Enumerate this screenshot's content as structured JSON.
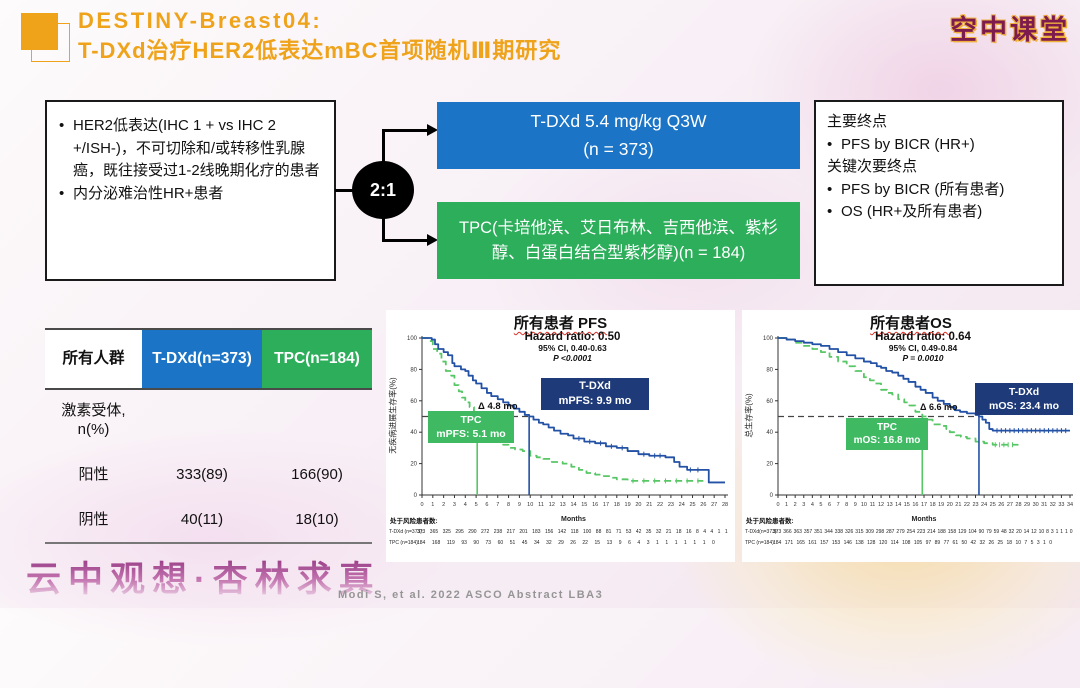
{
  "header": {
    "title_line1": "DESTINY-Breast04:",
    "title_line2": "T-DXd治疗HER2低表达mBC首项随机Ⅲ期研究",
    "logo": "空中课堂",
    "accent_color": "#EFA31B"
  },
  "flow": {
    "criteria_bullets": [
      "HER2低表达(IHC 1 + vs IHC 2 +/ISH-)，不可切除和/或转移性乳腺癌，既往接受过1-2线晚期化疗的患者",
      "内分泌难治性HR+患者"
    ],
    "randomization": "2:1",
    "arm1": {
      "line1": "T-DXd 5.4 mg/kg Q3W",
      "line2": "(n = 373)",
      "color": "#1B74C5"
    },
    "arm2": {
      "text": "TPC(卡培他滨、艾日布林、吉西他滨、紫杉醇、白蛋白结合型紫杉醇)(n = 184)",
      "color": "#2CAE5B"
    },
    "endpoints": {
      "primary_label": "主要终点",
      "primary_items": [
        "PFS by BICR (HR+)"
      ],
      "secondary_label": "关键次要终点",
      "secondary_items": [
        "PFS by BICR (所有患者)",
        "OS (HR+及所有患者)"
      ]
    }
  },
  "table": {
    "col_headers": [
      "所有人群",
      "T-DXd(n=373)",
      "TPC(n=184)"
    ],
    "header_colors": [
      "#FFFFFF",
      "#1B74C5",
      "#2CAE5B"
    ],
    "rows": [
      [
        "激素受体, n(%)",
        "",
        ""
      ],
      [
        "阳性",
        "333(89)",
        "166(90)"
      ],
      [
        "阴性",
        "40(11)",
        "18(10)"
      ]
    ]
  },
  "chart_data": [
    {
      "id": "pfs",
      "type": "line",
      "title": "所有患者 PFS",
      "hazard_ratio": "Hazard ratio: 0.50",
      "ci": "95% CI, 0.40-0.63",
      "p_value": "P <0.0001",
      "ylabel": "无疾病进展生存率(%)",
      "xlabel": "Months",
      "xlim": [
        0,
        28
      ],
      "ylim": [
        0,
        100
      ],
      "xticks": [
        0,
        1,
        2,
        3,
        4,
        5,
        6,
        7,
        8,
        9,
        10,
        11,
        12,
        13,
        14,
        15,
        16,
        17,
        18,
        19,
        20,
        21,
        22,
        23,
        24,
        25,
        26,
        27,
        28
      ],
      "yticks": [
        0,
        20,
        40,
        60,
        80,
        100
      ],
      "grid": false,
      "legend_position": "none",
      "reference_line_y": 50,
      "delta_label": "Δ 4.8 mo",
      "series": [
        {
          "name": "T-DXd",
          "label": "T-DXd",
          "sub": "mPFS: 9.9 mo",
          "median_x": 9.9,
          "color": "#2351A5",
          "dashed": false,
          "points": [
            [
              0,
              100
            ],
            [
              0.9,
              99
            ],
            [
              1.2,
              96
            ],
            [
              1.5,
              93
            ],
            [
              2,
              91
            ],
            [
              2.4,
              89
            ],
            [
              2.8,
              84
            ],
            [
              3,
              82
            ],
            [
              3.6,
              80
            ],
            [
              4,
              79
            ],
            [
              4.3,
              76
            ],
            [
              4.7,
              73
            ],
            [
              5,
              71
            ],
            [
              5.5,
              68
            ],
            [
              6,
              65
            ],
            [
              6.4,
              63
            ],
            [
              7,
              61
            ],
            [
              7.5,
              59
            ],
            [
              8,
              57
            ],
            [
              8.5,
              55
            ],
            [
              9,
              53
            ],
            [
              9.5,
              51
            ],
            [
              9.9,
              50
            ],
            [
              10.3,
              48
            ],
            [
              10.8,
              46
            ],
            [
              11.2,
              45
            ],
            [
              11.7,
              43
            ],
            [
              12.2,
              41
            ],
            [
              12.8,
              39
            ],
            [
              13.5,
              38
            ],
            [
              14,
              36
            ],
            [
              15,
              34
            ],
            [
              16,
              33
            ],
            [
              17,
              31
            ],
            [
              18,
              30
            ],
            [
              19,
              28
            ],
            [
              20,
              26
            ],
            [
              21,
              25
            ],
            [
              22.5,
              24
            ],
            [
              23.3,
              21
            ],
            [
              23.8,
              18
            ],
            [
              24.5,
              16
            ],
            [
              26.3,
              16
            ],
            [
              26.5,
              8
            ],
            [
              28,
              8
            ]
          ],
          "censor_x": [
            14.5,
            15.5,
            16.5,
            17.5,
            18.5,
            20.5,
            21.5,
            22,
            24.8,
            25.5
          ]
        },
        {
          "name": "TPC",
          "label": "TPC",
          "sub": "mPFS: 5.1 mo",
          "median_x": 5.1,
          "color": "#57C765",
          "dashed": true,
          "points": [
            [
              0,
              100
            ],
            [
              0.6,
              98
            ],
            [
              1,
              93
            ],
            [
              1.4,
              90
            ],
            [
              1.8,
              85
            ],
            [
              2.2,
              79
            ],
            [
              2.7,
              76
            ],
            [
              3,
              70
            ],
            [
              3.4,
              66
            ],
            [
              3.7,
              62
            ],
            [
              4,
              59
            ],
            [
              4.4,
              56
            ],
            [
              4.8,
              53
            ],
            [
              5.1,
              50
            ],
            [
              5.4,
              46
            ],
            [
              5.8,
              44
            ],
            [
              6.2,
              41
            ],
            [
              6.6,
              38
            ],
            [
              7,
              35
            ],
            [
              7.5,
              32
            ],
            [
              8,
              30
            ],
            [
              8.6,
              29
            ],
            [
              9.3,
              28
            ],
            [
              10,
              25
            ],
            [
              10.6,
              24
            ],
            [
              11.2,
              23
            ],
            [
              12,
              21
            ],
            [
              13,
              20
            ],
            [
              13.8,
              18
            ],
            [
              14.5,
              16
            ],
            [
              15.2,
              14
            ],
            [
              16,
              13
            ],
            [
              16.8,
              12
            ],
            [
              17.5,
              11
            ],
            [
              18,
              10
            ],
            [
              19,
              9
            ],
            [
              26,
              9
            ]
          ],
          "censor_x": [
            19.5,
            20.5,
            21.5,
            22.5,
            23.5,
            24.5,
            25.5
          ]
        }
      ],
      "risk_header": "处于风险患者数:",
      "risk_rows": [
        {
          "label": "T-DXd (n=373):",
          "values": [
            373,
            365,
            325,
            295,
            290,
            272,
            238,
            217,
            201,
            183,
            156,
            142,
            118,
            100,
            88,
            81,
            71,
            53,
            42,
            35,
            32,
            21,
            18,
            16,
            8,
            4,
            4,
            1,
            1
          ]
        },
        {
          "label": "TPC (n=184):",
          "values": [
            184,
            168,
            119,
            93,
            90,
            73,
            60,
            51,
            45,
            34,
            32,
            29,
            26,
            22,
            15,
            13,
            9,
            6,
            4,
            3,
            1,
            1,
            1,
            1,
            1,
            1,
            0
          ]
        }
      ]
    },
    {
      "id": "os",
      "type": "line",
      "title": "所有患者OS",
      "hazard_ratio": "Hazard ratio: 0.64",
      "ci": "95% CI, 0.49-0.84",
      "p_value": "P = 0.0010",
      "ylabel": "总生存率(%)",
      "xlabel": "Months",
      "xlim": [
        0,
        34
      ],
      "ylim": [
        0,
        100
      ],
      "xticks": [
        0,
        1,
        2,
        3,
        4,
        5,
        6,
        7,
        8,
        9,
        10,
        11,
        12,
        13,
        14,
        15,
        16,
        17,
        18,
        19,
        20,
        21,
        22,
        23,
        24,
        25,
        26,
        27,
        28,
        29,
        30,
        31,
        32,
        33,
        34
      ],
      "yticks": [
        0,
        20,
        40,
        60,
        80,
        100
      ],
      "grid": false,
      "legend_position": "none",
      "reference_line_y": 50,
      "delta_label": "Δ 6.6 mo",
      "series": [
        {
          "name": "T-DXd",
          "label": "T-DXd",
          "sub": "mOS: 23.4 mo",
          "median_x": 23.4,
          "color": "#2351A5",
          "dashed": false,
          "points": [
            [
              0,
              100
            ],
            [
              1,
              99
            ],
            [
              2,
              98
            ],
            [
              3,
              97
            ],
            [
              4,
              96
            ],
            [
              5,
              95
            ],
            [
              6,
              93
            ],
            [
              7,
              91
            ],
            [
              8,
              89
            ],
            [
              9,
              87
            ],
            [
              10,
              85
            ],
            [
              10.8,
              84
            ],
            [
              11.5,
              82
            ],
            [
              12,
              81
            ],
            [
              12.6,
              79
            ],
            [
              13.3,
              78
            ],
            [
              14,
              76
            ],
            [
              14.6,
              74
            ],
            [
              15.2,
              72
            ],
            [
              16,
              69
            ],
            [
              16.6,
              67
            ],
            [
              17.2,
              65
            ],
            [
              18,
              62
            ],
            [
              18.6,
              60
            ],
            [
              19.3,
              58
            ],
            [
              20,
              56
            ],
            [
              20.6,
              54
            ],
            [
              21.2,
              53
            ],
            [
              22,
              52
            ],
            [
              23,
              51
            ],
            [
              23.4,
              50
            ],
            [
              23.8,
              48
            ],
            [
              24.2,
              46
            ],
            [
              24.6,
              42
            ],
            [
              25,
              41
            ],
            [
              34,
              41
            ]
          ],
          "censor_x": [
            25.5,
            26,
            26.5,
            27,
            27.5,
            28,
            28.5,
            29,
            29.5,
            30,
            30.5,
            31,
            31.5,
            32,
            32.5,
            33,
            33.5
          ]
        },
        {
          "name": "TPC",
          "label": "TPC",
          "sub": "mOS: 16.8 mo",
          "median_x": 16.8,
          "color": "#57C765",
          "dashed": true,
          "points": [
            [
              0,
              100
            ],
            [
              1,
              99
            ],
            [
              2,
              97
            ],
            [
              3,
              95
            ],
            [
              4,
              93
            ],
            [
              5,
              91
            ],
            [
              6,
              88
            ],
            [
              7,
              85
            ],
            [
              8,
              82
            ],
            [
              9,
              79
            ],
            [
              10,
              75
            ],
            [
              10.7,
              73
            ],
            [
              11.3,
              71
            ],
            [
              12,
              67
            ],
            [
              12.7,
              65
            ],
            [
              13.3,
              64
            ],
            [
              14,
              61
            ],
            [
              14.7,
              59
            ],
            [
              15.3,
              57
            ],
            [
              16,
              53
            ],
            [
              16.8,
              50
            ],
            [
              17.3,
              48
            ],
            [
              18,
              45
            ],
            [
              19,
              44
            ],
            [
              19.6,
              42
            ],
            [
              20,
              40
            ],
            [
              20.7,
              38
            ],
            [
              21.3,
              37
            ],
            [
              22,
              36
            ],
            [
              23,
              34
            ],
            [
              24,
              33
            ],
            [
              25,
              32
            ],
            [
              28,
              32
            ]
          ],
          "censor_x": [
            25.3,
            25.8,
            26.3,
            26.8,
            27.3
          ]
        }
      ],
      "risk_header": "处于风险患者数:",
      "risk_rows": [
        {
          "label": "T-DXd(n=373):",
          "values": [
            373,
            366,
            363,
            357,
            351,
            344,
            338,
            326,
            315,
            309,
            298,
            287,
            279,
            254,
            223,
            214,
            188,
            158,
            129,
            104,
            90,
            79,
            59,
            48,
            32,
            20,
            14,
            12,
            10,
            8,
            3,
            1,
            1,
            1,
            0
          ]
        },
        {
          "label": "TPC (n=184):",
          "values": [
            184,
            171,
            165,
            161,
            157,
            153,
            146,
            138,
            128,
            120,
            114,
            108,
            105,
            97,
            89,
            77,
            61,
            50,
            42,
            32,
            26,
            25,
            18,
            10,
            7,
            5,
            3,
            1,
            0
          ]
        }
      ]
    }
  ],
  "footer": {
    "watermark": "云中观想·杏林求真",
    "citation": "Modi S, et al. 2022 ASCO Abstract LBA3"
  }
}
